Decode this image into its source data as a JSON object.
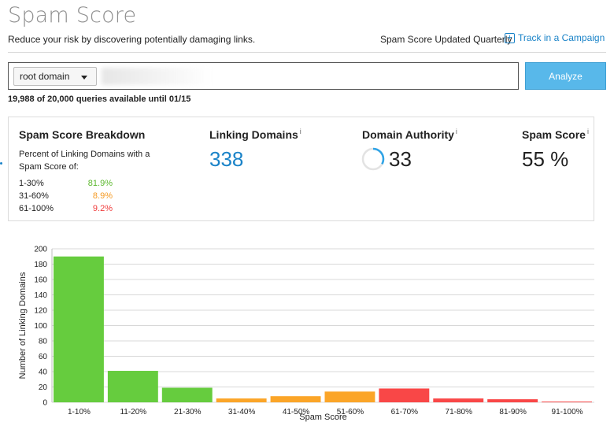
{
  "header": {
    "title": "Spam Score",
    "subtitle": "Reduce your risk by discovering potentially damaging links.",
    "updated_text": "Spam Score Updated Quarterly",
    "track_link": "Track in a Campaign",
    "track_icon": "plus-square-icon"
  },
  "search": {
    "select_value": "root domain",
    "analyze_label": "Analyze",
    "queries_text": "19,988 of 20,000 queries available until 01/15"
  },
  "metrics": {
    "breakdown_title": "Spam Score Breakdown",
    "breakdown_desc": "Percent of Linking Domains with a Spam Score of:",
    "breakdown": [
      {
        "range": "1-30%",
        "pct": "81.9%",
        "color": "#5cb82f"
      },
      {
        "range": "31-60%",
        "pct": "8.9%",
        "color": "#f59a23"
      },
      {
        "range": "61-100%",
        "pct": "9.2%",
        "color": "#ef3b3b"
      }
    ],
    "linking_title": "Linking Domains",
    "linking_value": "338",
    "linking_color": "#1a83c8",
    "authority_title": "Domain Authority",
    "authority_value": "33",
    "spam_title": "Spam Score",
    "spam_value": "55 %",
    "info_icon": "i"
  },
  "chart_data": {
    "type": "bar",
    "xlabel": "Spam Score",
    "ylabel": "Number of Linking Domains",
    "ylim": [
      0,
      200
    ],
    "yticks": [
      0,
      20,
      40,
      60,
      80,
      100,
      120,
      140,
      160,
      180,
      200
    ],
    "grid": true,
    "categories": [
      "1-10%",
      "11-20%",
      "21-30%",
      "31-40%",
      "41-50%",
      "51-60%",
      "61-70%",
      "71-80%",
      "81-90%",
      "91-100%"
    ],
    "values": [
      190,
      41,
      19,
      5,
      8,
      14,
      18,
      5,
      4,
      1
    ],
    "colors": [
      "#66cc3e",
      "#66cc3e",
      "#66cc3e",
      "#fba528",
      "#fba528",
      "#fba528",
      "#f94747",
      "#f94747",
      "#f94747",
      "#f94747"
    ]
  }
}
